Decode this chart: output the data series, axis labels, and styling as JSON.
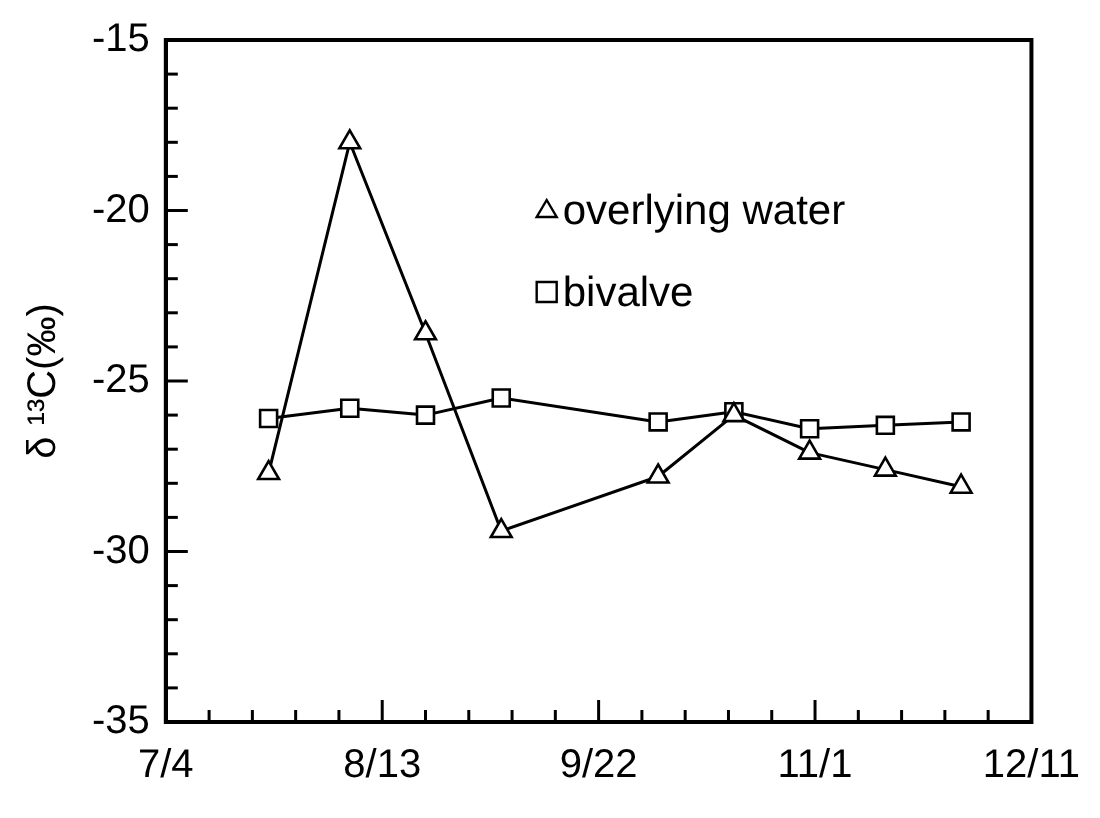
{
  "chart_data": {
    "type": "line",
    "ylabel": "δ ¹³C(‰)",
    "x": [
      "--07-23",
      "--08-07",
      "--08-21",
      "--09-04",
      "--10-03",
      "--10-17",
      "--10-31",
      "--11-14",
      "--11-28"
    ],
    "series": [
      {
        "name": "overlying water",
        "color": "#000000",
        "marker": "triangle",
        "values": [
          -27.7,
          -18.0,
          -23.6,
          -29.4,
          -27.8,
          -26.0,
          -27.1,
          -27.6,
          -28.1
        ]
      },
      {
        "name": "bivalve",
        "color": "#000000",
        "marker": "square",
        "values": [
          -26.1,
          -25.8,
          -26.0,
          -25.5,
          -26.2,
          -25.9,
          -26.4,
          -26.3,
          -26.2
        ]
      }
    ],
    "xlim": [
      "--07-04",
      "--12-11"
    ],
    "xticks": [
      {
        "value": "--07-04",
        "label": "7/4"
      },
      {
        "value": "--07-12",
        "label": null
      },
      {
        "value": "--07-20",
        "label": null
      },
      {
        "value": "--07-28",
        "label": null
      },
      {
        "value": "--08-05",
        "label": null
      },
      {
        "value": "--08-13",
        "label": "8/13"
      },
      {
        "value": "--08-21",
        "label": null
      },
      {
        "value": "--08-29",
        "label": null
      },
      {
        "value": "--09-06",
        "label": null
      },
      {
        "value": "--09-14",
        "label": null
      },
      {
        "value": "--09-22",
        "label": "9/22"
      },
      {
        "value": "--09-30",
        "label": null
      },
      {
        "value": "--10-08",
        "label": null
      },
      {
        "value": "--10-16",
        "label": null
      },
      {
        "value": "--10-24",
        "label": null
      },
      {
        "value": "--11-01",
        "label": "11/1"
      },
      {
        "value": "--11-09",
        "label": null
      },
      {
        "value": "--11-17",
        "label": null
      },
      {
        "value": "--11-25",
        "label": null
      },
      {
        "value": "--12-03",
        "label": null
      },
      {
        "value": "--12-11",
        "label": "12/11"
      }
    ],
    "ylim": [
      -35,
      -15
    ],
    "yticks": [
      -35,
      {
        "value": -34,
        "label": null
      },
      {
        "value": -33,
        "label": null
      },
      {
        "value": -32,
        "label": null
      },
      {
        "value": -31,
        "label": null
      },
      -30,
      {
        "value": -29,
        "label": null
      },
      {
        "value": -28,
        "label": null
      },
      {
        "value": -27,
        "label": null
      },
      {
        "value": -26,
        "label": null
      },
      -25,
      {
        "value": -24,
        "label": null
      },
      {
        "value": -23,
        "label": null
      },
      {
        "value": -22,
        "label": null
      },
      {
        "value": -21,
        "label": null
      },
      -20,
      {
        "value": -19,
        "label": null
      },
      {
        "value": -18,
        "label": null
      },
      {
        "value": -17,
        "label": null
      },
      {
        "value": -16,
        "label": null
      },
      -15
    ],
    "legend": "top right",
    "grid": false,
    "line_style": "solid"
  }
}
